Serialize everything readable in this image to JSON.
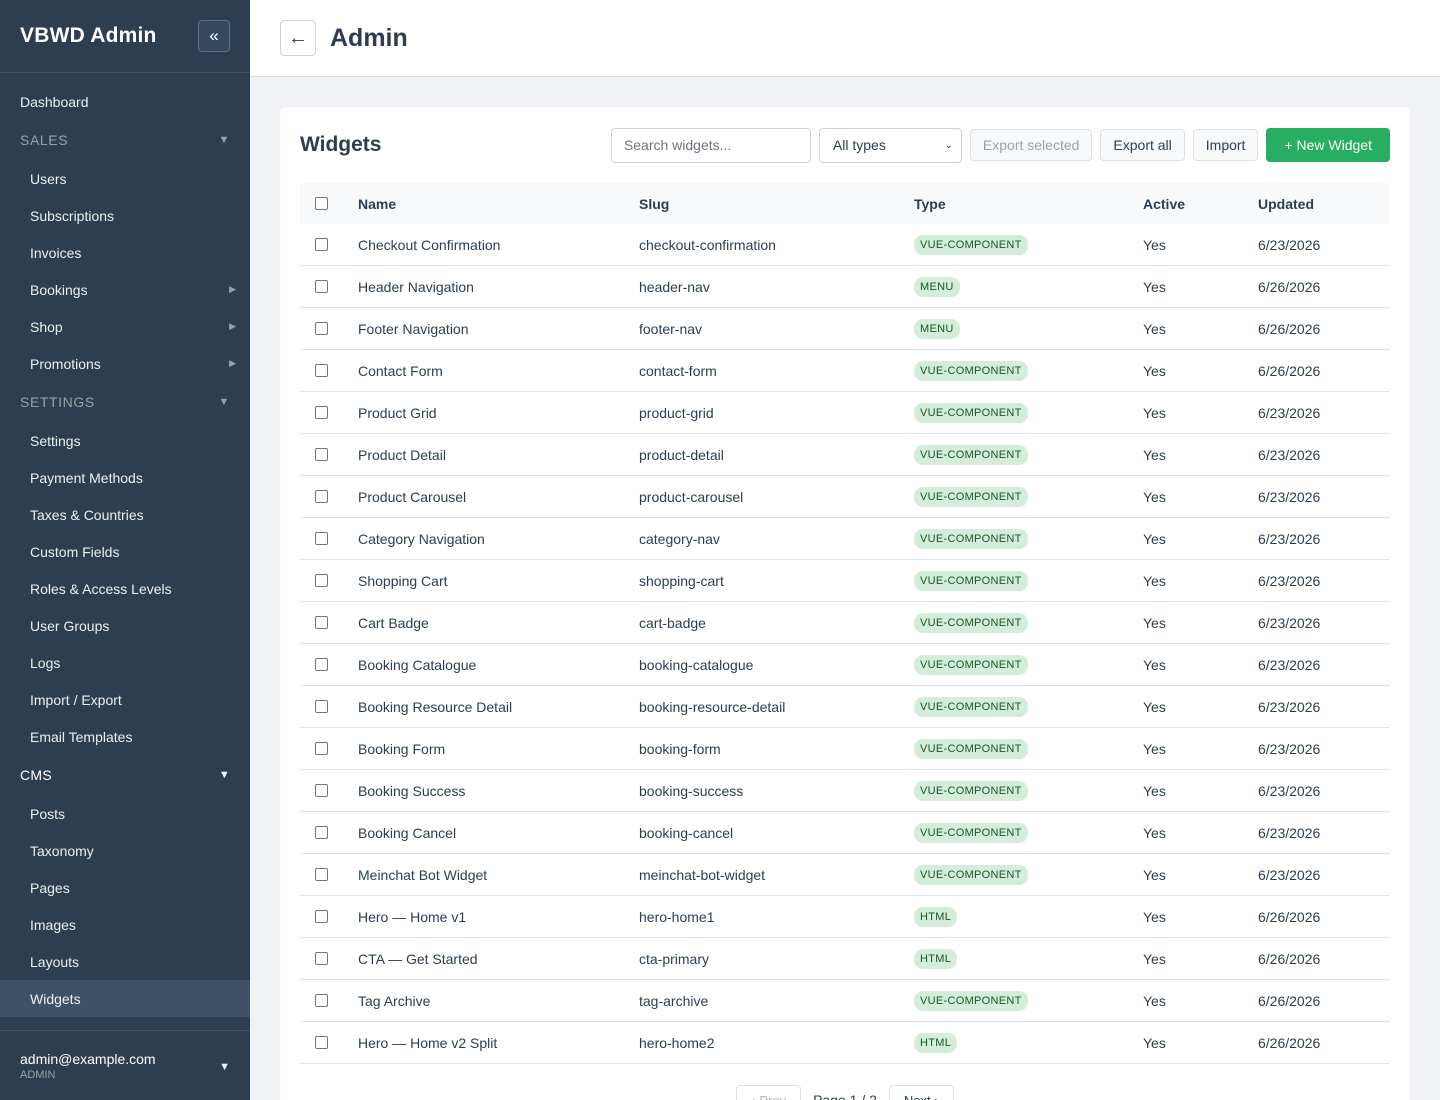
{
  "sidebar": {
    "brand": "VBWD Admin",
    "collapse": "«",
    "dashboard": "Dashboard",
    "sales": {
      "title": "SALES",
      "items": [
        {
          "label": "Users",
          "submenu": false
        },
        {
          "label": "Subscriptions",
          "submenu": false
        },
        {
          "label": "Invoices",
          "submenu": false
        },
        {
          "label": "Bookings",
          "submenu": true
        },
        {
          "label": "Shop",
          "submenu": true
        },
        {
          "label": "Promotions",
          "submenu": true
        }
      ]
    },
    "settings": {
      "title": "SETTINGS",
      "items": [
        {
          "label": "Settings"
        },
        {
          "label": "Payment Methods"
        },
        {
          "label": "Taxes & Countries"
        },
        {
          "label": "Custom Fields"
        },
        {
          "label": "Roles & Access Levels"
        },
        {
          "label": "User Groups"
        },
        {
          "label": "Logs"
        },
        {
          "label": "Import / Export"
        },
        {
          "label": "Email Templates"
        }
      ]
    },
    "cms": {
      "title": "CMS",
      "items": [
        {
          "label": "Posts",
          "active": false
        },
        {
          "label": "Taxonomy",
          "active": false
        },
        {
          "label": "Pages",
          "active": false
        },
        {
          "label": "Images",
          "active": false
        },
        {
          "label": "Layouts",
          "active": false
        },
        {
          "label": "Widgets",
          "active": true
        }
      ]
    },
    "user": {
      "email": "admin@example.com",
      "role": "ADMIN"
    }
  },
  "header": {
    "back": "←",
    "title": "Admin"
  },
  "widgets": {
    "title": "Widgets",
    "search_placeholder": "Search widgets...",
    "type_filter": "All types",
    "export_selected": "Export selected",
    "export_all": "Export all",
    "import": "Import",
    "new_widget": "+ New Widget",
    "columns": {
      "name": "Name",
      "slug": "Slug",
      "type": "Type",
      "active": "Active",
      "updated": "Updated"
    },
    "rows": [
      {
        "name": "Checkout Confirmation",
        "slug": "checkout-confirmation",
        "type": "VUE-COMPONENT",
        "active": "Yes",
        "updated": "6/23/2026"
      },
      {
        "name": "Header Navigation",
        "slug": "header-nav",
        "type": "MENU",
        "active": "Yes",
        "updated": "6/26/2026"
      },
      {
        "name": "Footer Navigation",
        "slug": "footer-nav",
        "type": "MENU",
        "active": "Yes",
        "updated": "6/26/2026"
      },
      {
        "name": "Contact Form",
        "slug": "contact-form",
        "type": "VUE-COMPONENT",
        "active": "Yes",
        "updated": "6/26/2026"
      },
      {
        "name": "Product Grid",
        "slug": "product-grid",
        "type": "VUE-COMPONENT",
        "active": "Yes",
        "updated": "6/23/2026"
      },
      {
        "name": "Product Detail",
        "slug": "product-detail",
        "type": "VUE-COMPONENT",
        "active": "Yes",
        "updated": "6/23/2026"
      },
      {
        "name": "Product Carousel",
        "slug": "product-carousel",
        "type": "VUE-COMPONENT",
        "active": "Yes",
        "updated": "6/23/2026"
      },
      {
        "name": "Category Navigation",
        "slug": "category-nav",
        "type": "VUE-COMPONENT",
        "active": "Yes",
        "updated": "6/23/2026"
      },
      {
        "name": "Shopping Cart",
        "slug": "shopping-cart",
        "type": "VUE-COMPONENT",
        "active": "Yes",
        "updated": "6/23/2026"
      },
      {
        "name": "Cart Badge",
        "slug": "cart-badge",
        "type": "VUE-COMPONENT",
        "active": "Yes",
        "updated": "6/23/2026"
      },
      {
        "name": "Booking Catalogue",
        "slug": "booking-catalogue",
        "type": "VUE-COMPONENT",
        "active": "Yes",
        "updated": "6/23/2026"
      },
      {
        "name": "Booking Resource Detail",
        "slug": "booking-resource-detail",
        "type": "VUE-COMPONENT",
        "active": "Yes",
        "updated": "6/23/2026"
      },
      {
        "name": "Booking Form",
        "slug": "booking-form",
        "type": "VUE-COMPONENT",
        "active": "Yes",
        "updated": "6/23/2026"
      },
      {
        "name": "Booking Success",
        "slug": "booking-success",
        "type": "VUE-COMPONENT",
        "active": "Yes",
        "updated": "6/23/2026"
      },
      {
        "name": "Booking Cancel",
        "slug": "booking-cancel",
        "type": "VUE-COMPONENT",
        "active": "Yes",
        "updated": "6/23/2026"
      },
      {
        "name": "Meinchat Bot Widget",
        "slug": "meinchat-bot-widget",
        "type": "VUE-COMPONENT",
        "active": "Yes",
        "updated": "6/23/2026"
      },
      {
        "name": "Hero — Home v1",
        "slug": "hero-home1",
        "type": "HTML",
        "active": "Yes",
        "updated": "6/26/2026"
      },
      {
        "name": "CTA — Get Started",
        "slug": "cta-primary",
        "type": "HTML",
        "active": "Yes",
        "updated": "6/26/2026"
      },
      {
        "name": "Tag Archive",
        "slug": "tag-archive",
        "type": "VUE-COMPONENT",
        "active": "Yes",
        "updated": "6/26/2026"
      },
      {
        "name": "Hero — Home v2 Split",
        "slug": "hero-home2",
        "type": "HTML",
        "active": "Yes",
        "updated": "6/26/2026"
      }
    ],
    "pagination": {
      "prev": "‹ Prev",
      "page_text": "Page 1 / 2",
      "next": "Next ›"
    }
  },
  "colors": {
    "sidebar_bg": "#2c3e50",
    "primary": "#27ae60",
    "badge_bg": "#d4edda",
    "badge_text": "#155724"
  },
  "icons": {
    "collapse": "double-chevron-left-icon",
    "back": "arrow-left-icon",
    "section_caret": "caret-down-icon",
    "submenu": "caret-right-icon"
  }
}
